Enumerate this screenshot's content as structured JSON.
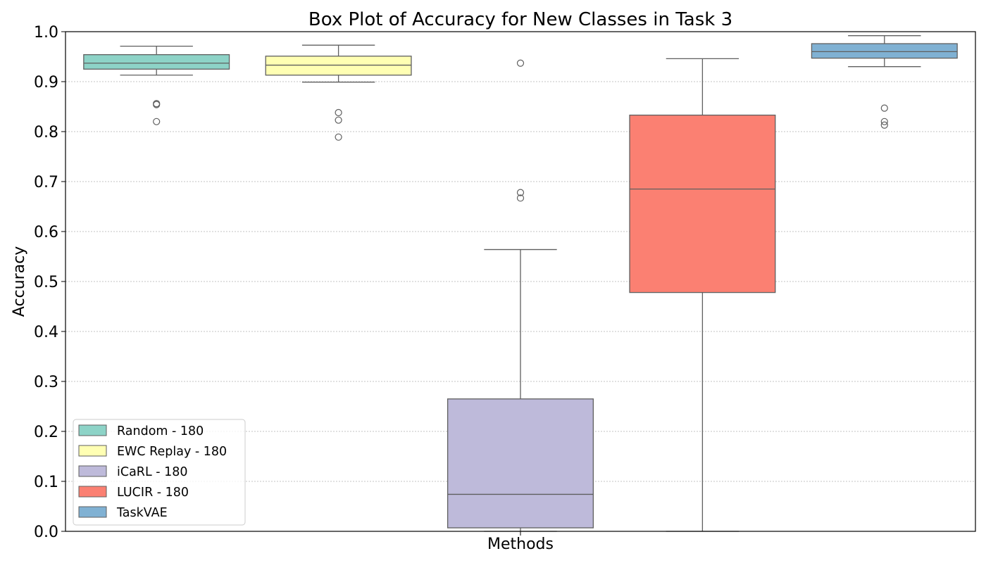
{
  "chart_data": {
    "type": "box",
    "title": "Box Plot of Accuracy for New Classes in Task 3",
    "xlabel": "Methods",
    "ylabel": "Accuracy",
    "ylim": [
      0.0,
      1.0
    ],
    "yticks": [
      0.0,
      0.1,
      0.2,
      0.3,
      0.4,
      0.5,
      0.6,
      0.7,
      0.8,
      0.9,
      1.0
    ],
    "ytick_labels": [
      "0.0",
      "0.1",
      "0.2",
      "0.3",
      "0.4",
      "0.5",
      "0.6",
      "0.7",
      "0.8",
      "0.9",
      "1.0"
    ],
    "grid": "horizontal dotted",
    "legend_position": "lower-left",
    "series": [
      {
        "name": "Random - 180",
        "color": "#8dd3c7",
        "whisker_low": 0.913,
        "q1": 0.925,
        "median": 0.937,
        "q3": 0.954,
        "whisker_high": 0.971,
        "outliers": [
          0.856,
          0.854,
          0.82
        ]
      },
      {
        "name": "EWC Replay - 180",
        "color": "#ffffb3",
        "whisker_low": 0.899,
        "q1": 0.913,
        "median": 0.933,
        "q3": 0.951,
        "whisker_high": 0.973,
        "outliers": [
          0.838,
          0.823,
          0.789
        ]
      },
      {
        "name": "iCaRL - 180",
        "color": "#bebada",
        "whisker_low": 0.0,
        "q1": 0.007,
        "median": 0.074,
        "q3": 0.265,
        "whisker_high": 0.564,
        "outliers": [
          0.937,
          0.678,
          0.667
        ]
      },
      {
        "name": "LUCIR - 180",
        "color": "#fb8072",
        "whisker_low": 0.0,
        "q1": 0.478,
        "median": 0.685,
        "q3": 0.833,
        "whisker_high": 0.946,
        "outliers": []
      },
      {
        "name": "TaskVAE",
        "color": "#80b1d3",
        "whisker_low": 0.93,
        "q1": 0.947,
        "median": 0.96,
        "q3": 0.976,
        "whisker_high": 0.992,
        "outliers": [
          0.847,
          0.82,
          0.813
        ]
      }
    ]
  }
}
